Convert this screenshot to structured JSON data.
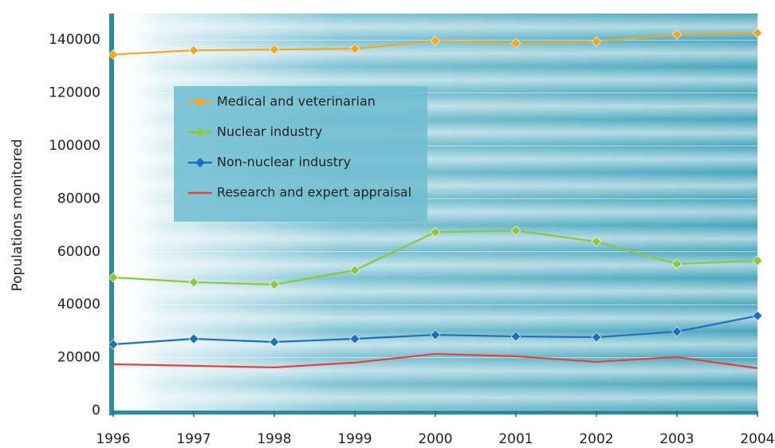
{
  "chart_data": {
    "type": "line",
    "y_label": "Populations monitored",
    "x": [
      1996,
      1997,
      1998,
      1999,
      2000,
      2001,
      2002,
      2003,
      2004
    ],
    "xlim": [
      1996,
      2004
    ],
    "xticks": [
      1996,
      1997,
      1998,
      1999,
      2000,
      2001,
      2002,
      2003,
      2004
    ],
    "ylim": [
      0,
      150000
    ],
    "yticks": [
      0,
      20000,
      40000,
      60000,
      80000,
      100000,
      120000,
      140000
    ],
    "grid": true,
    "legend": "upper left",
    "series": [
      {
        "name": "Medical and veterinarian",
        "color": "#f5a623",
        "marker": "diamond",
        "values": [
          134500,
          136100,
          136400,
          136700,
          139700,
          138800,
          139400,
          142100,
          142700
        ]
      },
      {
        "name": "Nuclear industry",
        "color": "#8dc63f",
        "marker": "diamond",
        "values": [
          50300,
          48500,
          47600,
          53000,
          67400,
          68000,
          63800,
          55400,
          56600
        ]
      },
      {
        "name": "Non-nuclear industry",
        "color": "#1f6fbf",
        "marker": "diamond",
        "values": [
          25000,
          27100,
          25900,
          27100,
          28600,
          28000,
          27700,
          29800,
          35800
        ]
      },
      {
        "name": "Research and expert appraisal",
        "color": "#e8403a",
        "marker": "none",
        "values": [
          17500,
          16900,
          16300,
          18100,
          21400,
          20500,
          18400,
          20200,
          16000
        ]
      }
    ]
  }
}
